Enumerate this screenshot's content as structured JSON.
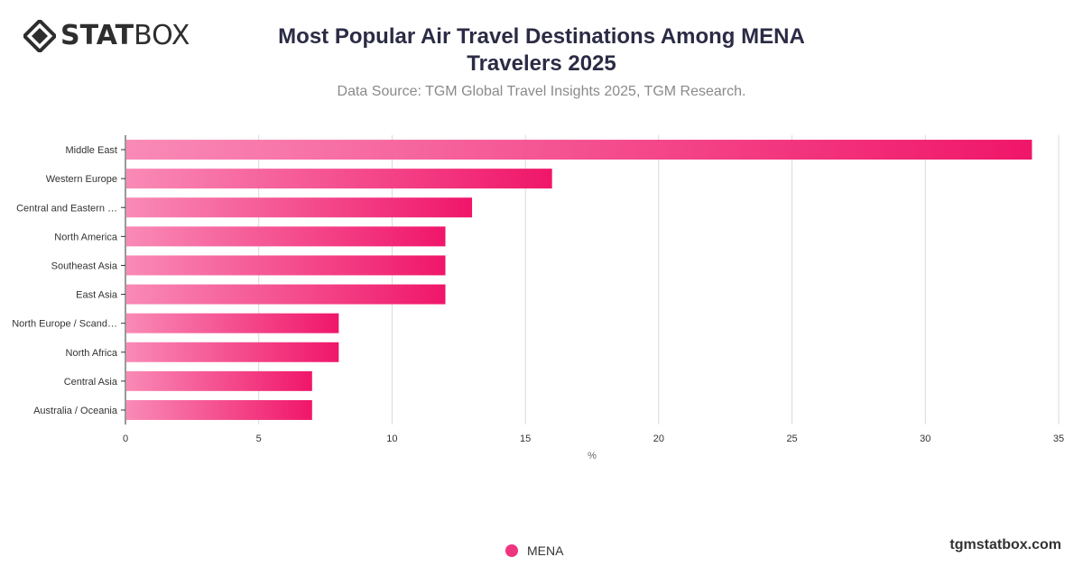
{
  "logo": {
    "text_bold": "STAT",
    "text_light": "BOX"
  },
  "brand_url": "tgmstatbox.com",
  "colors": {
    "bar_start": "#f98ab6",
    "bar_end": "#f0166a",
    "legend": "#f0357f",
    "gridline": "#d9d9d9",
    "axis": "#333333",
    "title": "#2b2b45"
  },
  "chart_data": {
    "type": "bar",
    "orientation": "horizontal",
    "title_line1": "Most Popular Air Travel Destinations Among MENA",
    "title_line2": "Travelers 2025",
    "subtitle": "Data Source: TGM Global Travel Insights 2025, TGM Research.",
    "xlabel": "%",
    "ylabel": "",
    "xlim": [
      0,
      35
    ],
    "xticks": [
      0,
      5,
      10,
      15,
      20,
      25,
      30,
      35
    ],
    "grid": true,
    "legend_position": "bottom-center",
    "categories": [
      "Middle East",
      "Western Europe",
      "Central and Eastern …",
      "North America",
      "Southeast Asia",
      "East Asia",
      "North Europe / Scand…",
      "North Africa",
      "Central Asia",
      "Australia / Oceania"
    ],
    "series": [
      {
        "name": "MENA",
        "values": [
          34,
          16,
          13,
          12,
          12,
          12,
          8,
          8,
          7,
          7
        ]
      }
    ]
  }
}
